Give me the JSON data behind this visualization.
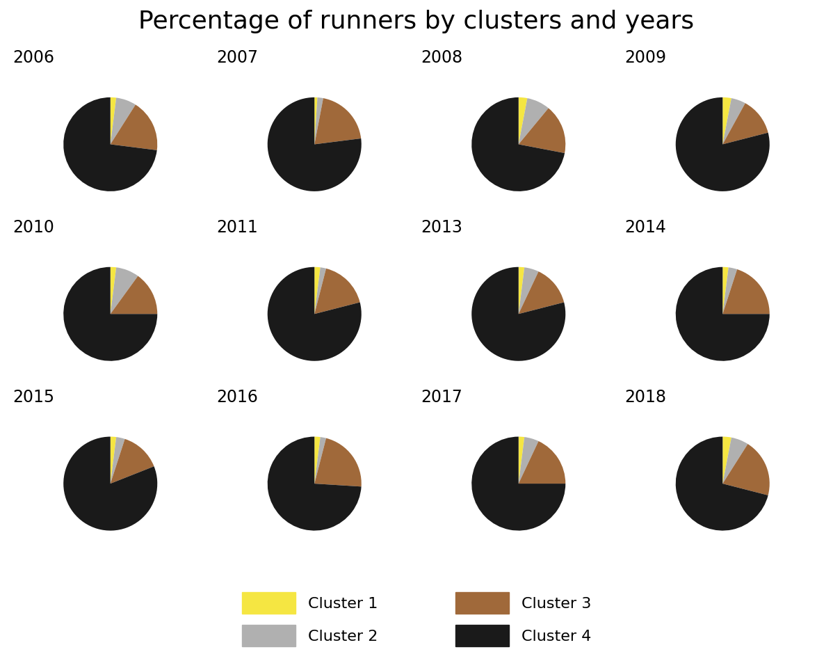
{
  "title": "Percentage of runners by clusters and years",
  "years": [
    2006,
    2007,
    2008,
    2009,
    2010,
    2011,
    2013,
    2014,
    2015,
    2016,
    2017,
    2018
  ],
  "cluster_colors": [
    "#F5E642",
    "#B0B0B0",
    "#A0693A",
    "#1A1A1A"
  ],
  "cluster_labels": [
    "Cluster 1",
    "Cluster 2",
    "Cluster 3",
    "Cluster 4"
  ],
  "data": {
    "2006": [
      2,
      7,
      18,
      73
    ],
    "2007": [
      1,
      2,
      20,
      77
    ],
    "2008": [
      3,
      8,
      17,
      72
    ],
    "2009": [
      3,
      5,
      13,
      79
    ],
    "2010": [
      2,
      8,
      15,
      75
    ],
    "2011": [
      2,
      2,
      17,
      79
    ],
    "2013": [
      2,
      5,
      14,
      79
    ],
    "2014": [
      2,
      3,
      20,
      75
    ],
    "2015": [
      2,
      3,
      14,
      81
    ],
    "2016": [
      2,
      2,
      22,
      74
    ],
    "2017": [
      2,
      5,
      18,
      75
    ],
    "2018": [
      3,
      6,
      20,
      71
    ]
  },
  "nrows": 3,
  "ncols": 4,
  "title_fontsize": 26,
  "year_fontsize": 17,
  "legend_fontsize": 16
}
